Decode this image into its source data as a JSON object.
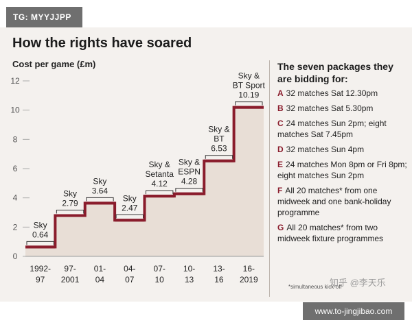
{
  "tag": "TG: MYYJJPP",
  "heading": "How the rights have soared",
  "subheading": "Cost per game (£m)",
  "colors": {
    "line": "#8a1c2c",
    "area": "#e8ded6",
    "bracket": "#333333",
    "letter": "#8a1c2c"
  },
  "chart_data": {
    "type": "area",
    "title": "How the rights have soared",
    "ylabel": "Cost per game (£m)",
    "ylim": [
      0,
      12
    ],
    "yticks": [
      "0",
      "2",
      "4",
      "6",
      "8",
      "10",
      "12"
    ],
    "grid": false,
    "periods": [
      {
        "label_top": "1992-",
        "label_bottom": "97",
        "value": 0.64,
        "broadcaster": "Sky",
        "value_label": "0.64"
      },
      {
        "label_top": "97-",
        "label_bottom": "2001",
        "value": 2.79,
        "broadcaster": "Sky",
        "value_label": "2.79"
      },
      {
        "label_top": "01-",
        "label_bottom": "04",
        "value": 3.64,
        "broadcaster": "Sky",
        "value_label": "3.64"
      },
      {
        "label_top": "04-",
        "label_bottom": "07",
        "value": 2.47,
        "broadcaster": "Sky",
        "value_label": "2.47"
      },
      {
        "label_top": "07-",
        "label_bottom": "10",
        "value": 4.12,
        "broadcaster": "Sky & Setanta",
        "value_label": "4.12"
      },
      {
        "label_top": "10-",
        "label_bottom": "13",
        "value": 4.28,
        "broadcaster": "Sky & ESPN",
        "value_label": "4.28"
      },
      {
        "label_top": "13-",
        "label_bottom": "16",
        "value": 6.53,
        "broadcaster": "Sky & BT",
        "value_label": "6.53"
      },
      {
        "label_top": "16-",
        "label_bottom": "2019",
        "value": 10.19,
        "broadcaster": "Sky & BT Sport",
        "value_label": "10.19"
      }
    ]
  },
  "legend": {
    "title": "The seven packages they are bidding for:",
    "items": [
      {
        "letter": "A",
        "text": "32 matches Sat 12.30pm"
      },
      {
        "letter": "B",
        "text": "32 matches Sat 5.30pm"
      },
      {
        "letter": "C",
        "text": "24 matches Sun 2pm; eight matches Sat 7.45pm"
      },
      {
        "letter": "D",
        "text": "32 matches Sun 4pm"
      },
      {
        "letter": "E",
        "text": "24 matches Mon 8pm or Fri 8pm; eight matches Sun 2pm"
      },
      {
        "letter": "F",
        "text": "All 20 matches* from one midweek and one bank-holiday programme"
      },
      {
        "letter": "G",
        "text": "All 20 matches* from two midweek fixture programmes"
      }
    ]
  },
  "footnote": "*simultaneous kick-off",
  "watermark": "知乎 @李天乐",
  "url": "www.to-jingjibao.com"
}
